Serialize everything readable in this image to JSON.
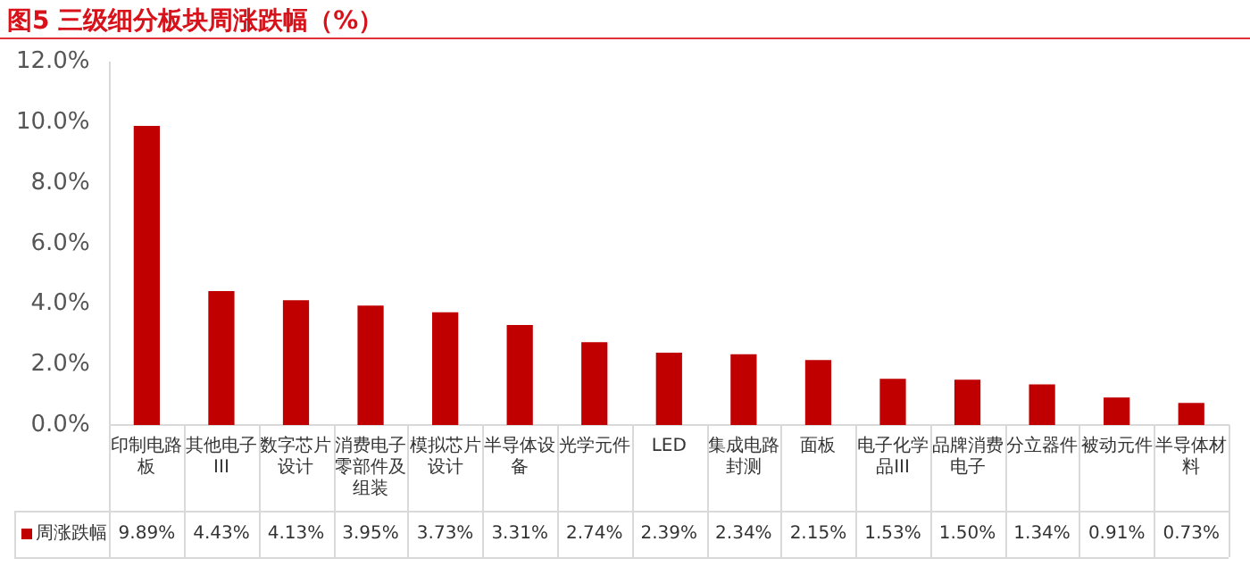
{
  "chart_data": {
    "type": "bar",
    "title": "图5  三级细分板块周涨跌幅（%）",
    "categories": [
      "印制电路板",
      "其他电子III",
      "数字芯片设计",
      "消费电子零部件及组装",
      "模拟芯片设计",
      "半导体设备",
      "光学元件",
      "LED",
      "集成电路封测",
      "面板",
      "电子化学品III",
      "品牌消费电子",
      "分立器件",
      "被动元件",
      "半导体材料"
    ],
    "series": [
      {
        "name": "周涨跌幅",
        "color": "#c00000",
        "values": [
          9.89,
          4.43,
          4.13,
          3.95,
          3.73,
          3.31,
          2.74,
          2.39,
          2.34,
          2.15,
          1.53,
          1.5,
          1.34,
          0.91,
          0.73
        ],
        "value_labels": [
          "9.89%",
          "4.43%",
          "4.13%",
          "3.95%",
          "3.73%",
          "3.31%",
          "2.74%",
          "2.39%",
          "2.34%",
          "2.15%",
          "1.53%",
          "1.50%",
          "1.34%",
          "0.91%",
          "0.73%"
        ]
      }
    ],
    "ylim": [
      0,
      12
    ],
    "yticks": [
      {
        "value": 0,
        "label": "0.0%"
      },
      {
        "value": 2,
        "label": "2.0%"
      },
      {
        "value": 4,
        "label": "4.0%"
      },
      {
        "value": 6,
        "label": "6.0%"
      },
      {
        "value": 8,
        "label": "8.0%"
      },
      {
        "value": 10,
        "label": "10.0%"
      },
      {
        "value": 12,
        "label": "12.0%"
      }
    ],
    "grid": false,
    "legend": "bottom left"
  }
}
